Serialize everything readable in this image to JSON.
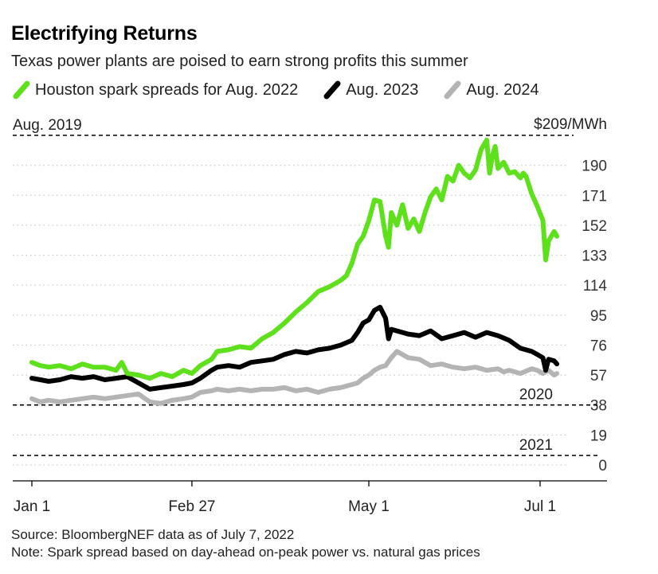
{
  "title": "Electrifying Returns",
  "subtitle": "Texas power plants are poised to earn strong profits this summer",
  "legend": [
    {
      "label": "Houston spark spreads for Aug. 2022",
      "color": "#5ee01d"
    },
    {
      "label": "Aug. 2023",
      "color": "#000000"
    },
    {
      "label": "Aug. 2024",
      "color": "#b4b4b4"
    }
  ],
  "source": "Source: BloombergNEF data as of July 7, 2022",
  "note": "Note: Spark spread based on day-ahead on-peak power vs. natural gas prices",
  "chart_data": {
    "type": "line",
    "ylabel": "",
    "xlabel": "",
    "ylim": [
      0,
      209
    ],
    "y_ticks": [
      0,
      19,
      38,
      57,
      76,
      95,
      114,
      133,
      152,
      171,
      190
    ],
    "y_top_label": "$209/MWh",
    "x_ticks": [
      {
        "label": "Jan 1",
        "day": 0
      },
      {
        "label": "Feb 27",
        "day": 57
      },
      {
        "label": "May 1",
        "day": 120
      },
      {
        "label": "Jul 1",
        "day": 181
      }
    ],
    "grid": "dotted horizontal",
    "reference_lines": [
      {
        "label": "Aug. 2019",
        "value": 209,
        "label_side": "left"
      },
      {
        "label": "2020",
        "value": 38,
        "label_side": "right"
      },
      {
        "label": "2021",
        "value": 6,
        "label_side": "right"
      }
    ],
    "series": [
      {
        "name": "Houston spark spreads for Aug. 2022",
        "color": "#5ee01d",
        "days": [
          0,
          3,
          6,
          10,
          14,
          18,
          22,
          26,
          30,
          32,
          34,
          38,
          42,
          46,
          50,
          54,
          57,
          60,
          64,
          66,
          70,
          74,
          78,
          82,
          86,
          90,
          94,
          98,
          102,
          106,
          110,
          112,
          114,
          116,
          118,
          120,
          122,
          124,
          126,
          127,
          128,
          130,
          132,
          134,
          136,
          138,
          140,
          142,
          144,
          146,
          148,
          150,
          152,
          154,
          156,
          158,
          160,
          162,
          163,
          164,
          165,
          166,
          168,
          170,
          172,
          174,
          175,
          176,
          178,
          180,
          182,
          183,
          184,
          186,
          187
        ],
        "values": [
          65,
          63,
          62,
          63,
          61,
          64,
          62,
          62,
          60,
          65,
          58,
          57,
          55,
          58,
          56,
          60,
          58,
          63,
          67,
          72,
          73,
          75,
          74,
          80,
          84,
          90,
          97,
          103,
          110,
          113,
          117,
          120,
          128,
          140,
          145,
          155,
          168,
          167,
          145,
          138,
          160,
          152,
          165,
          150,
          156,
          148,
          160,
          170,
          175,
          168,
          183,
          180,
          190,
          185,
          182,
          187,
          200,
          206,
          185,
          196,
          202,
          188,
          192,
          185,
          186,
          182,
          185,
          183,
          172,
          164,
          155,
          130,
          142,
          148,
          145
        ]
      },
      {
        "name": "Aug. 2023",
        "color": "#000000",
        "days": [
          0,
          3,
          6,
          10,
          14,
          18,
          22,
          26,
          30,
          34,
          38,
          42,
          46,
          50,
          54,
          57,
          60,
          64,
          66,
          70,
          74,
          78,
          82,
          86,
          90,
          94,
          98,
          102,
          106,
          110,
          114,
          116,
          118,
          120,
          122,
          124,
          126,
          127,
          128,
          130,
          134,
          138,
          142,
          146,
          150,
          154,
          158,
          162,
          166,
          170,
          174,
          178,
          180,
          182,
          183,
          184,
          186,
          187
        ],
        "values": [
          55,
          54,
          53,
          54,
          56,
          55,
          56,
          54,
          55,
          56,
          52,
          48,
          49,
          50,
          51,
          52,
          55,
          60,
          62,
          63,
          62,
          65,
          66,
          67,
          70,
          72,
          71,
          73,
          74,
          76,
          79,
          84,
          90,
          92,
          98,
          100,
          93,
          80,
          86,
          85,
          83,
          82,
          85,
          80,
          82,
          84,
          81,
          84,
          82,
          79,
          74,
          72,
          70,
          68,
          60,
          67,
          66,
          64
        ]
      },
      {
        "name": "Aug. 2024",
        "color": "#b4b4b4",
        "days": [
          0,
          3,
          6,
          10,
          14,
          18,
          22,
          26,
          30,
          34,
          38,
          42,
          46,
          50,
          54,
          57,
          60,
          64,
          66,
          70,
          74,
          78,
          82,
          86,
          90,
          94,
          98,
          102,
          106,
          110,
          114,
          116,
          118,
          120,
          122,
          124,
          126,
          128,
          130,
          134,
          138,
          142,
          146,
          150,
          154,
          158,
          162,
          166,
          168,
          170,
          174,
          178,
          180,
          182,
          184,
          186,
          187
        ],
        "values": [
          42,
          40,
          41,
          40,
          41,
          42,
          43,
          42,
          43,
          44,
          45,
          40,
          39,
          41,
          42,
          43,
          46,
          47,
          48,
          47,
          48,
          47,
          48,
          48,
          49,
          47,
          48,
          46,
          48,
          49,
          51,
          52,
          55,
          57,
          60,
          62,
          63,
          68,
          72,
          68,
          67,
          63,
          64,
          62,
          61,
          62,
          60,
          61,
          59,
          60,
          58,
          61,
          60,
          58,
          60,
          57,
          58
        ]
      }
    ]
  }
}
